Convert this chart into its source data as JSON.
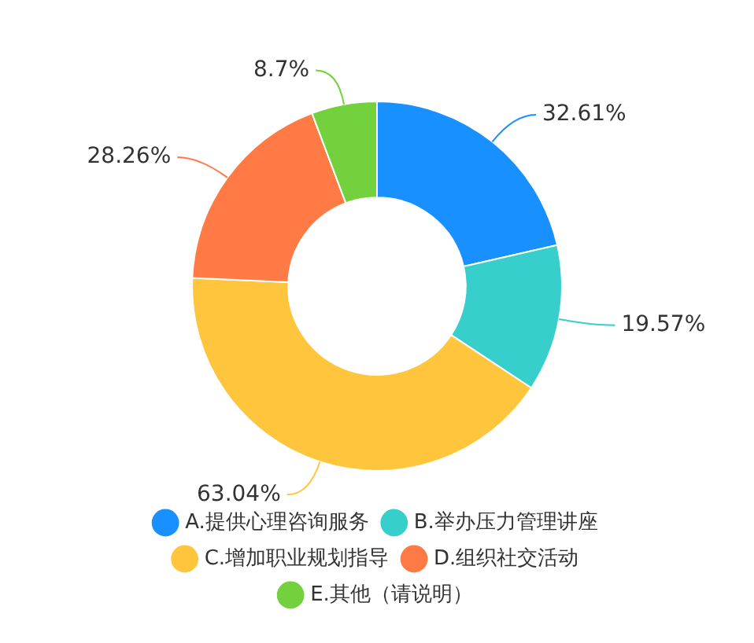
{
  "chart_data": {
    "type": "donut",
    "categories": [
      "A.提供心理咨询服务",
      "B.举办压力管理讲座",
      "C.增加职业规划指导",
      "D.组织社交活动",
      "E.其他（请说明）"
    ],
    "values": [
      32.61,
      19.57,
      63.04,
      28.26,
      8.7
    ],
    "value_labels": [
      "32.61%",
      "19.57%",
      "63.04%",
      "28.26%",
      "8.7%"
    ],
    "colors": [
      "#1890ff",
      "#36cfcb",
      "#ffc53d",
      "#ff7a45",
      "#73d13d"
    ],
    "legend": "bottom"
  }
}
